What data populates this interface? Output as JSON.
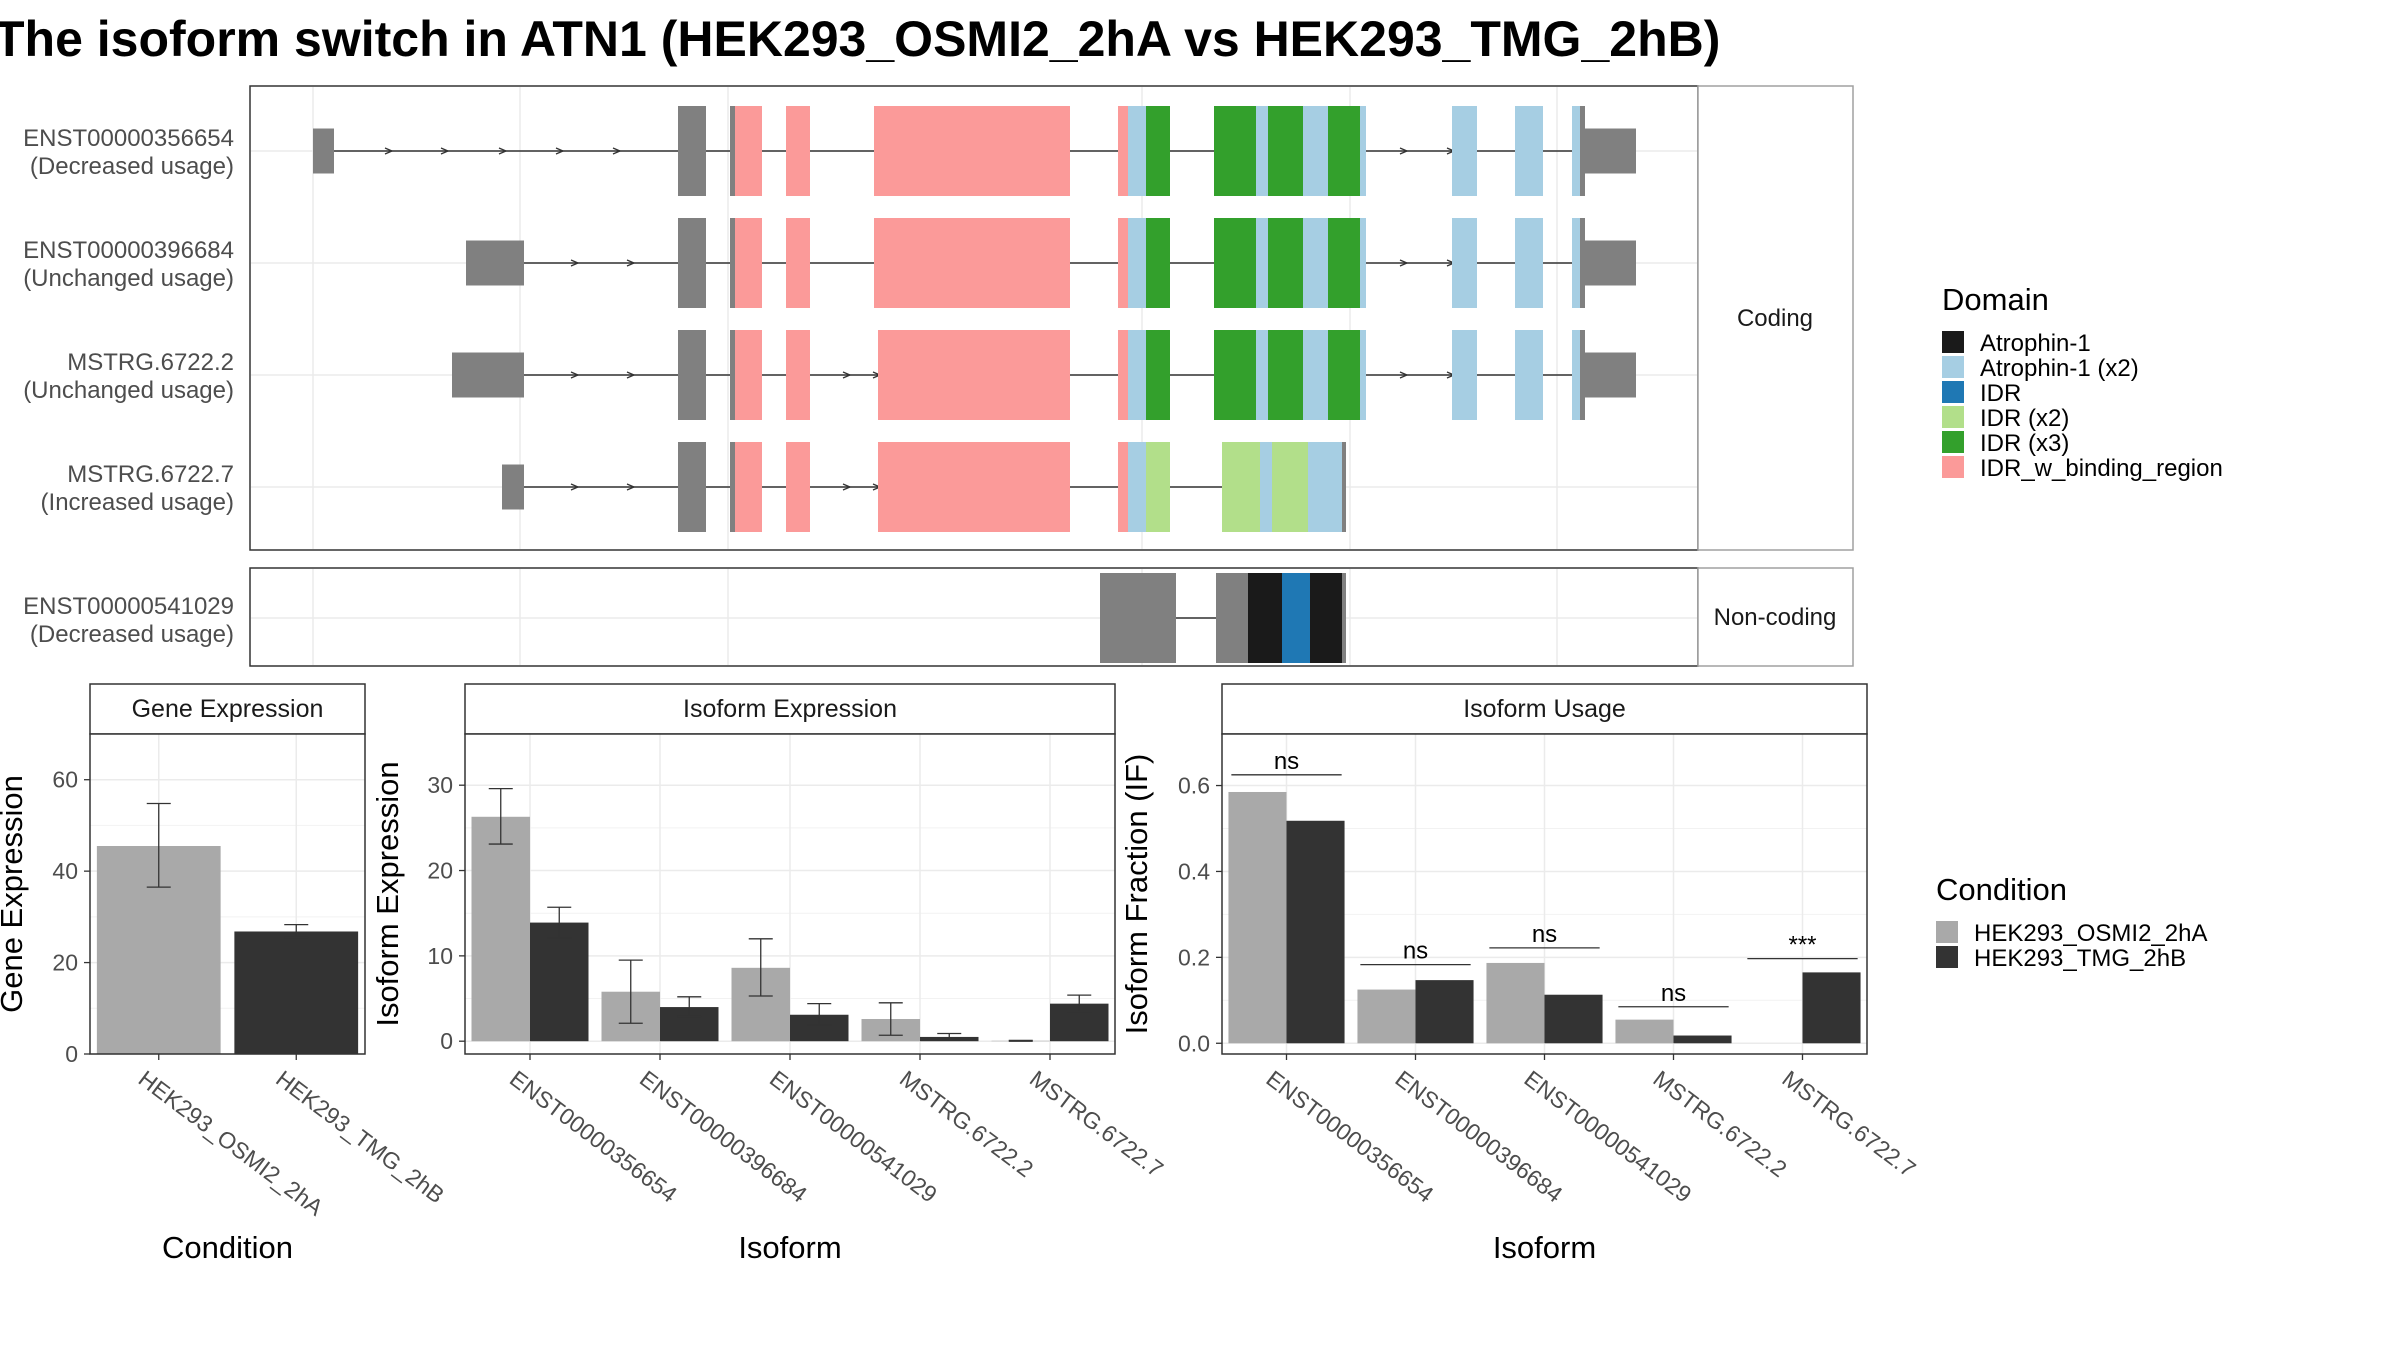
{
  "title": "The isoform switch in ATN1 (HEK293_OSMI2_2hA vs HEK293_TMG_2hB)",
  "domain_colors": {
    "Atrophin-1": "#1a1a1a",
    "Atrophin-1 (x2)": "#a6cee3",
    "IDR": "#1f78b4",
    "IDR (x2)": "#b2df8a",
    "IDR (x3)": "#33a02c",
    "IDR_w_binding_region": "#fb9a99"
  },
  "condition_colors": {
    "HEK293_OSMI2_2hA": "#a9a9a9",
    "HEK293_TMG_2hB": "#333333"
  },
  "structure": {
    "coding_label": "Coding",
    "noncoding_label": "Non-coding",
    "coding_isoforms": [
      {
        "id": "ENST00000356654",
        "usage": "(Decreased usage)"
      },
      {
        "id": "ENST00000396684",
        "usage": "(Unchanged usage)"
      },
      {
        "id": "MSTRG.6722.2",
        "usage": "(Unchanged usage)"
      },
      {
        "id": "MSTRG.6722.7",
        "usage": "(Increased usage)"
      }
    ],
    "noncoding_isoforms": [
      {
        "id": "ENST00000541029",
        "usage": "(Decreased usage)"
      }
    ]
  },
  "legend_domain": {
    "title": "Domain",
    "items": [
      "Atrophin-1",
      "Atrophin-1 (x2)",
      "IDR",
      "IDR (x2)",
      "IDR (x3)",
      "IDR_w_binding_region"
    ]
  },
  "legend_condition": {
    "title": "Condition",
    "items": [
      "HEK293_OSMI2_2hA",
      "HEK293_TMG_2hB"
    ]
  },
  "chart_data": [
    {
      "type": "bar",
      "panel": "Gene Expression",
      "xlabel": "Condition",
      "ylabel": "Gene Expression",
      "categories": [
        "HEK293_OSMI2_2hA",
        "HEK293_TMG_2hB"
      ],
      "values": [
        45.5,
        26.8
      ],
      "error_low": [
        36.5,
        25.5
      ],
      "error_high": [
        54.8,
        28.3
      ],
      "ylim": [
        0,
        70
      ],
      "yticks": [
        0,
        20,
        40,
        60
      ]
    },
    {
      "type": "bar",
      "panel": "Isoform Expression",
      "xlabel": "Isoform",
      "ylabel": "Isoform Expression",
      "categories": [
        "ENST00000356654",
        "ENST00000396684",
        "ENST00000541029",
        "MSTRG.6722.2",
        "MSTRG.6722.7"
      ],
      "series": [
        {
          "name": "HEK293_OSMI2_2hA",
          "values": [
            26.3,
            5.8,
            8.6,
            2.6,
            0.05
          ],
          "error_low": [
            23.1,
            2.1,
            5.3,
            0.7,
            0
          ],
          "error_high": [
            29.6,
            9.5,
            12.0,
            4.5,
            0.1
          ]
        },
        {
          "name": "HEK293_TMG_2hB",
          "values": [
            13.9,
            4.0,
            3.1,
            0.5,
            4.4
          ],
          "error_low": [
            12.1,
            2.9,
            1.9,
            0.2,
            3.4
          ],
          "error_high": [
            15.7,
            5.2,
            4.4,
            0.9,
            5.4
          ]
        }
      ],
      "ylim": [
        -1.5,
        36
      ],
      "yticks": [
        0,
        10,
        20,
        30
      ]
    },
    {
      "type": "bar",
      "panel": "Isoform Usage",
      "xlabel": "Isoform",
      "ylabel": "Isoform Fraction (IF)",
      "categories": [
        "ENST00000356654",
        "ENST00000396684",
        "ENST00000541029",
        "MSTRG.6722.2",
        "MSTRG.6722.7"
      ],
      "series": [
        {
          "name": "HEK293_OSMI2_2hA",
          "values": [
            0.585,
            0.125,
            0.187,
            0.055,
            0.0
          ]
        },
        {
          "name": "HEK293_TMG_2hB",
          "values": [
            0.518,
            0.147,
            0.113,
            0.018,
            0.165
          ]
        }
      ],
      "significance": [
        "ns",
        "ns",
        "ns",
        "ns",
        "***"
      ],
      "significance_y": [
        0.625,
        0.183,
        0.222,
        0.085,
        0.197
      ],
      "ylim": [
        -0.025,
        0.72
      ],
      "yticks": [
        0.0,
        0.2,
        0.4,
        0.6
      ],
      "ytick_labels": [
        "0.0",
        "0.2",
        "0.4",
        "0.6"
      ]
    }
  ]
}
